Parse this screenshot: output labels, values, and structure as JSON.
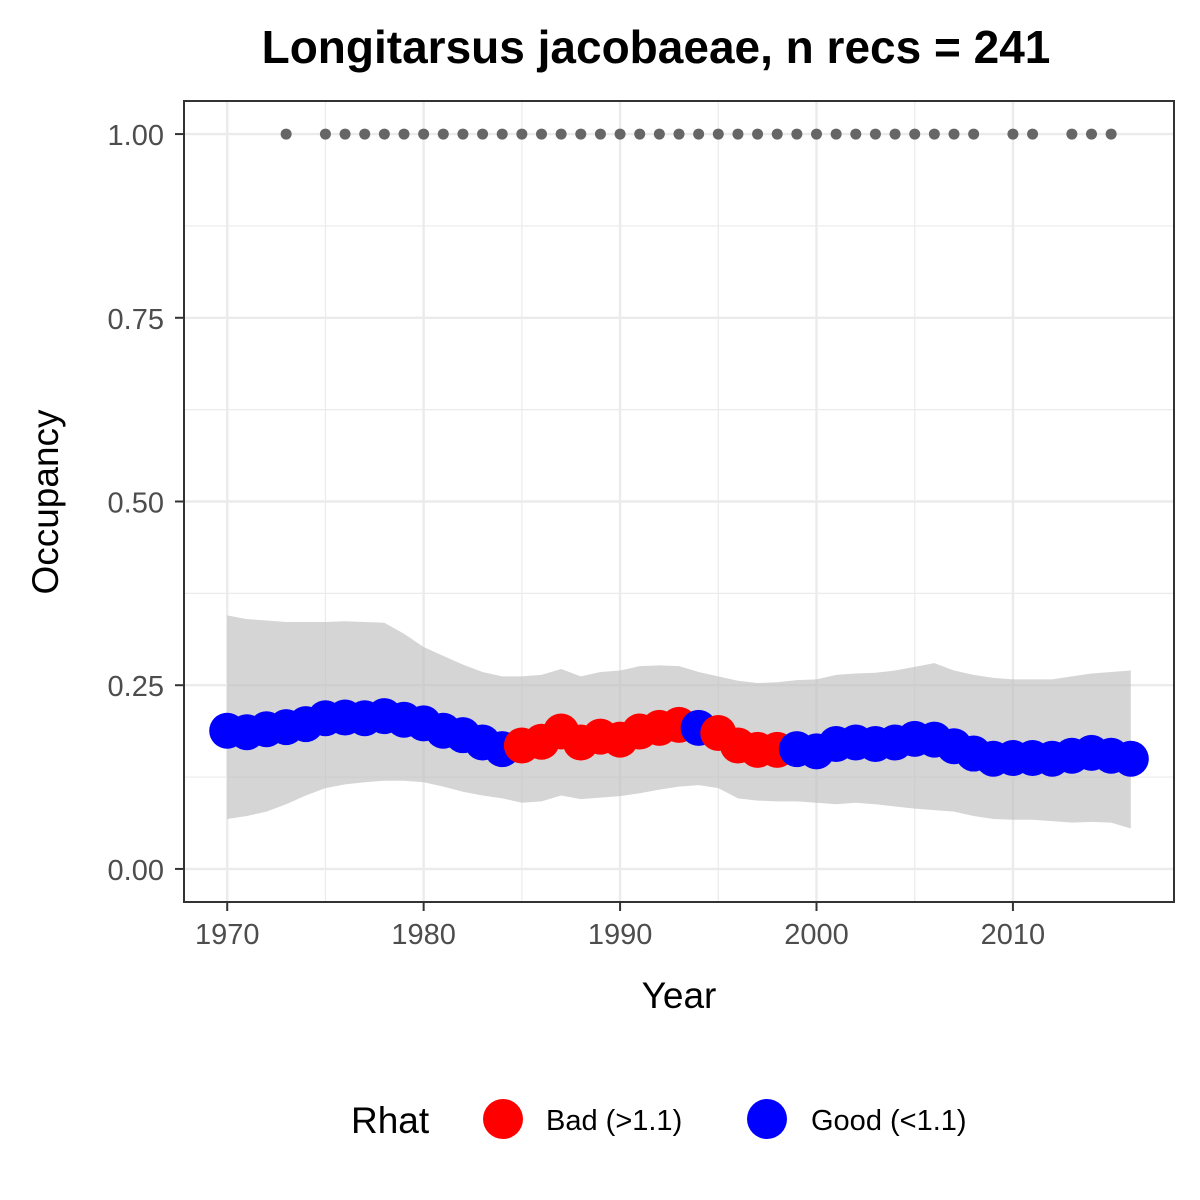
{
  "chart_data": {
    "type": "line",
    "title": "Longitarsus jacobaeae, n recs = 241",
    "xlabel": "Year",
    "ylabel": "Occupancy",
    "xlim": [
      1967.8,
      2018.2
    ],
    "ylim": [
      -0.045,
      1.045
    ],
    "x_ticks": [
      1970,
      1980,
      1990,
      2000,
      2010
    ],
    "x_tick_labels": [
      "1970",
      "1980",
      "1990",
      "2000",
      "2010"
    ],
    "y_ticks": [
      0,
      0.25,
      0.5,
      0.75,
      1.0
    ],
    "y_tick_labels": [
      "0.00",
      "0.25",
      "0.50",
      "0.75",
      "1.00"
    ],
    "grid": true,
    "legend": {
      "title": "Rhat",
      "position": "bottom",
      "entries": [
        {
          "label": "Bad (>1.1)",
          "color": "#ff0000"
        },
        {
          "label": "Good (<1.1)",
          "color": "#0000ff"
        }
      ]
    },
    "colors": {
      "bad": "#ff0000",
      "good": "#0000ff",
      "ribbon": "#bfbfbf",
      "record_points": "#666666"
    },
    "series": [
      {
        "years": [
          1970,
          1971,
          1972,
          1973,
          1974,
          1975,
          1976,
          1977,
          1978,
          1979,
          1980,
          1981,
          1982,
          1983,
          1984,
          1985,
          1986,
          1987,
          1988,
          1989,
          1990,
          1991,
          1992,
          1993,
          1994,
          1995,
          1996,
          1997,
          1998,
          1999,
          2000,
          2001,
          2002,
          2003,
          2004,
          2005,
          2006,
          2007,
          2008,
          2009,
          2010,
          2011,
          2012,
          2013,
          2014,
          2015,
          2016
        ],
        "occupancy": [
          0.188,
          0.186,
          0.19,
          0.193,
          0.197,
          0.205,
          0.206,
          0.205,
          0.208,
          0.203,
          0.198,
          0.188,
          0.182,
          0.172,
          0.163,
          0.168,
          0.173,
          0.187,
          0.172,
          0.18,
          0.176,
          0.187,
          0.192,
          0.196,
          0.192,
          0.185,
          0.168,
          0.162,
          0.162,
          0.163,
          0.16,
          0.17,
          0.172,
          0.17,
          0.172,
          0.177,
          0.176,
          0.167,
          0.157,
          0.15,
          0.151,
          0.151,
          0.15,
          0.154,
          0.158,
          0.154,
          0.15
        ],
        "rhat": [
          "good",
          "good",
          "good",
          "good",
          "good",
          "good",
          "good",
          "good",
          "good",
          "good",
          "good",
          "good",
          "good",
          "good",
          "good",
          "bad",
          "bad",
          "bad",
          "bad",
          "bad",
          "bad",
          "bad",
          "bad",
          "bad",
          "good",
          "bad",
          "bad",
          "bad",
          "bad",
          "good",
          "good",
          "good",
          "good",
          "good",
          "good",
          "good",
          "good",
          "good",
          "good",
          "good",
          "good",
          "good",
          "good",
          "good",
          "good",
          "good",
          "good"
        ],
        "lower": [
          0.068,
          0.072,
          0.078,
          0.088,
          0.1,
          0.11,
          0.115,
          0.118,
          0.12,
          0.12,
          0.118,
          0.112,
          0.105,
          0.1,
          0.096,
          0.09,
          0.092,
          0.1,
          0.095,
          0.097,
          0.099,
          0.103,
          0.108,
          0.112,
          0.114,
          0.11,
          0.096,
          0.093,
          0.092,
          0.092,
          0.09,
          0.088,
          0.09,
          0.088,
          0.085,
          0.082,
          0.08,
          0.078,
          0.072,
          0.068,
          0.067,
          0.067,
          0.065,
          0.063,
          0.064,
          0.063,
          0.055
        ],
        "upper": [
          0.345,
          0.34,
          0.338,
          0.336,
          0.336,
          0.336,
          0.337,
          0.336,
          0.335,
          0.32,
          0.302,
          0.29,
          0.278,
          0.268,
          0.262,
          0.262,
          0.264,
          0.272,
          0.262,
          0.268,
          0.27,
          0.276,
          0.277,
          0.276,
          0.268,
          0.262,
          0.256,
          0.253,
          0.254,
          0.257,
          0.258,
          0.264,
          0.266,
          0.267,
          0.27,
          0.275,
          0.28,
          0.27,
          0.264,
          0.26,
          0.258,
          0.258,
          0.258,
          0.262,
          0.266,
          0.268,
          0.27
        ]
      }
    ],
    "record_years": [
      1973,
      1975,
      1976,
      1977,
      1978,
      1979,
      1980,
      1981,
      1982,
      1983,
      1984,
      1985,
      1986,
      1987,
      1988,
      1989,
      1990,
      1991,
      1992,
      1993,
      1994,
      1995,
      1996,
      1997,
      1998,
      1999,
      2000,
      2001,
      2002,
      2003,
      2004,
      2005,
      2006,
      2007,
      2008,
      2010,
      2011,
      2013,
      2014,
      2015
    ],
    "record_value": 1.0
  }
}
